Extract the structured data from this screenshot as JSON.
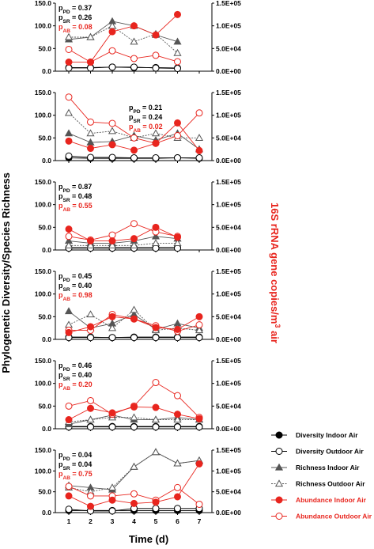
{
  "colors": {
    "axis": "#000000",
    "diversity": "#000000",
    "richness": "#555555",
    "abundance": "#e8251e"
  },
  "chart_data": {
    "type": "line",
    "x": [
      1,
      2,
      3,
      4,
      5,
      6,
      7
    ],
    "xlabel": "Time (d)",
    "ylabel_left": "Phylogenetic Diversity/Species Richness",
    "ylabel_right_prefix": "16S rRNA gene copies/m",
    "ylabel_right_sup": "3",
    "ylabel_right_suffix": " air",
    "left_ylim": [
      0,
      150
    ],
    "right_ylim": [
      0,
      150000
    ],
    "left_ticks": [
      "0.0",
      "50.0",
      "100.0",
      "150.0"
    ],
    "right_ticks": [
      "0.0E+00",
      "5.0E+04",
      "1.0E+05",
      "1.5E+05"
    ],
    "legend": {
      "placement": "bottom-right",
      "entries": [
        {
          "key": "div_in",
          "label": "Diversity Indoor Air"
        },
        {
          "key": "div_out",
          "label": "Diversity Outdoor Air"
        },
        {
          "key": "rich_in",
          "label": "Richness Indoor Air"
        },
        {
          "key": "rich_out",
          "label": "Richness Outdoor Air"
        },
        {
          "key": "ab_in",
          "label": "Abundance Indoor Air"
        },
        {
          "key": "ab_out",
          "label": "Abundance Outdoor Air"
        }
      ]
    },
    "panels": [
      {
        "p": [
          {
            "sub": "PD",
            "value": "0.37"
          },
          {
            "sub": "SR",
            "value": "0.26"
          },
          {
            "sub": "AB",
            "value": "0.08"
          }
        ],
        "p_position": "top-left",
        "series": {
          "div_in": [
            8,
            8,
            9,
            8,
            8,
            7,
            null
          ],
          "div_out": [
            7,
            7,
            9,
            9,
            7,
            6,
            null
          ],
          "rich_in": [
            70,
            75,
            110,
            100,
            80,
            65,
            null
          ],
          "rich_out": [
            75,
            75,
            100,
            65,
            82,
            40,
            null
          ],
          "ab_in": [
            20000,
            20000,
            87000,
            100000,
            80000,
            125000,
            null
          ],
          "ab_out": [
            48000,
            20000,
            45000,
            28000,
            35000,
            21000,
            null
          ]
        }
      },
      {
        "p": [
          {
            "sub": "PD",
            "value": "0.21"
          },
          {
            "sub": "SR",
            "value": "0.24"
          },
          {
            "sub": "AB",
            "value": "0.02"
          }
        ],
        "p_position": "top-center",
        "series": {
          "div_in": [
            6,
            5,
            5,
            5,
            5,
            6,
            5
          ],
          "div_out": [
            10,
            7,
            7,
            6,
            6,
            6,
            6
          ],
          "rich_in": [
            60,
            40,
            42,
            55,
            45,
            60,
            25
          ],
          "rich_out": [
            105,
            60,
            65,
            50,
            60,
            50,
            50
          ],
          "ab_in": [
            43000,
            27000,
            35000,
            23000,
            38000,
            83000,
            22000
          ],
          "ab_out": [
            140000,
            85000,
            82000,
            50000,
            38000,
            55000,
            105000
          ]
        }
      },
      {
        "p": [
          {
            "sub": "PD",
            "value": "0.87"
          },
          {
            "sub": "SR",
            "value": "0.48"
          },
          {
            "sub": "AB",
            "value": "0.55"
          }
        ],
        "p_position": "top-left",
        "series": {
          "div_in": [
            5,
            5,
            5,
            5,
            5,
            5,
            null
          ],
          "div_out": [
            4,
            4,
            4,
            4,
            4,
            4,
            null
          ],
          "rich_in": [
            20,
            15,
            15,
            20,
            30,
            25,
            null
          ],
          "rich_out": [
            10,
            10,
            10,
            10,
            15,
            15,
            null
          ],
          "ab_in": [
            46000,
            20000,
            20000,
            25000,
            50000,
            28000,
            null
          ],
          "ab_out": [
            30000,
            22000,
            33000,
            58000,
            40000,
            30000,
            null
          ]
        }
      },
      {
        "p": [
          {
            "sub": "PD",
            "value": "0.45"
          },
          {
            "sub": "SR",
            "value": "0.40"
          },
          {
            "sub": "AB",
            "value": "0.98"
          }
        ],
        "p_position": "top-left",
        "series": {
          "div_in": [
            5,
            5,
            4,
            5,
            5,
            5,
            5
          ],
          "div_out": [
            4,
            4,
            4,
            4,
            4,
            4,
            4
          ],
          "rich_in": [
            62,
            25,
            35,
            55,
            22,
            35,
            25
          ],
          "rich_out": [
            32,
            55,
            25,
            65,
            20,
            25,
            20
          ],
          "ab_in": [
            15000,
            28000,
            50000,
            45000,
            26000,
            22000,
            50000
          ],
          "ab_out": [
            20000,
            20000,
            55000,
            45000,
            30000,
            18000,
            32000
          ]
        }
      },
      {
        "p": [
          {
            "sub": "PD",
            "value": "0.46"
          },
          {
            "sub": "SR",
            "value": "0.40"
          },
          {
            "sub": "AB",
            "value": "0.20"
          }
        ],
        "p_position": "top-left",
        "series": {
          "div_in": [
            5,
            5,
            5,
            5,
            5,
            5,
            5
          ],
          "div_out": [
            4,
            4,
            4,
            4,
            4,
            4,
            4
          ],
          "rich_in": [
            10,
            20,
            30,
            20,
            20,
            25,
            20
          ],
          "rich_out": [
            15,
            20,
            25,
            25,
            20,
            20,
            20
          ],
          "ab_in": [
            20000,
            45000,
            35000,
            48000,
            47000,
            32000,
            22000
          ],
          "ab_out": [
            50000,
            62000,
            32000,
            50000,
            102000,
            73000,
            25000
          ]
        }
      },
      {
        "p": [
          {
            "sub": "PD",
            "value": "0.04"
          },
          {
            "sub": "SR",
            "value": "0.04"
          },
          {
            "sub": "AB",
            "value": "0.75"
          }
        ],
        "p_position": "top-left",
        "series": {
          "div_in": [
            5,
            5,
            5,
            5,
            5,
            5,
            5
          ],
          "div_out": [
            8,
            4,
            4,
            10,
            10,
            10,
            10
          ],
          "rich_in": [
            65,
            60,
            55,
            110,
            145,
            118,
            125
          ],
          "rich_out": [
            60,
            50,
            60,
            110,
            145,
            118,
            125
          ],
          "ab_in": [
            40000,
            15000,
            30000,
            22000,
            25000,
            38000,
            117000
          ],
          "ab_out": [
            63000,
            40000,
            40000,
            45000,
            30000,
            60000,
            20000
          ]
        }
      }
    ]
  }
}
